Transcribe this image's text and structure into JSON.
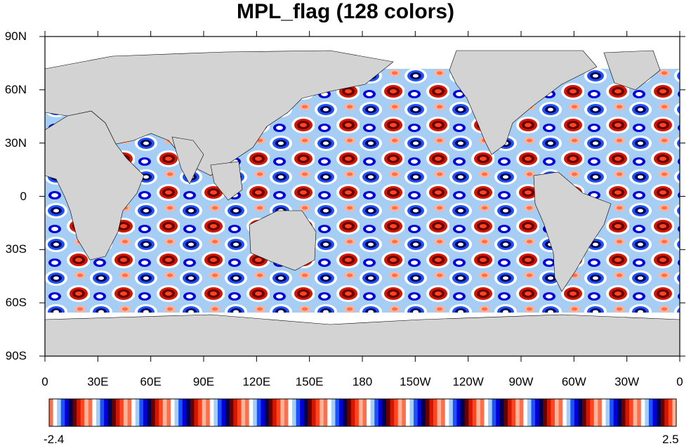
{
  "title": "MPL_flag (128 colors)",
  "map": {
    "projection": "cylindrical-equidistant",
    "center_longitude": 180,
    "lat_ticks": [
      {
        "value": 90,
        "label": "90N"
      },
      {
        "value": 60,
        "label": "60N"
      },
      {
        "value": 30,
        "label": "30N"
      },
      {
        "value": 0,
        "label": "0"
      },
      {
        "value": -30,
        "label": "30S"
      },
      {
        "value": -60,
        "label": "60S"
      },
      {
        "value": -90,
        "label": "90S"
      }
    ],
    "lon_ticks": [
      "0",
      "30E",
      "60E",
      "90E",
      "120E",
      "150E",
      "180",
      "150W",
      "120W",
      "90W",
      "60W",
      "30W",
      "0"
    ],
    "land_color": "#d3d3d3",
    "missing_color": "#ffffff",
    "field": "synthetic oscillating anomaly over ocean"
  },
  "colorbar": {
    "min_label": "-2.4",
    "max_label": "2.5",
    "colors": [
      "#fb6f4d",
      "#ffffff",
      "#a6cdf3",
      "#1d52f9",
      "#0000d8",
      "#000050",
      "#640000",
      "#d41500",
      "#ff4520",
      "#ffb399"
    ],
    "repeats": 16
  }
}
